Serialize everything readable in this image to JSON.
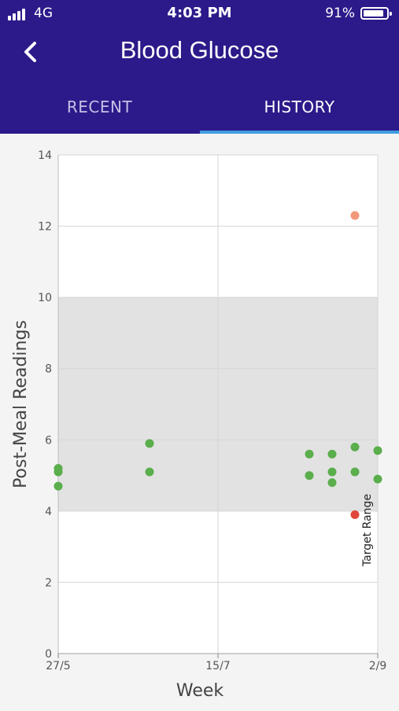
{
  "status": {
    "carrier": "4G",
    "time": "4:03 PM",
    "battery": "91%",
    "battery_level": 0.91,
    "signal_bars": 4
  },
  "header": {
    "title": "Blood Glucose",
    "back_icon": "chevron-left-icon"
  },
  "tabs": [
    {
      "label": "RECENT",
      "active": false
    },
    {
      "label": "HISTORY",
      "active": true
    }
  ],
  "colors": {
    "header_bg": "#2c1a8a",
    "tab_indicator": "#3f9de0",
    "in_range": "#5aae4c",
    "high": "#f2977a",
    "low": "#e0463a",
    "target_band": "#e2e2e2"
  },
  "chart_data": {
    "type": "scatter",
    "xlabel": "Week",
    "ylabel": "Post-Meal Readings",
    "ylim": [
      0,
      14
    ],
    "yticks": [
      0,
      2,
      4,
      6,
      8,
      10,
      12,
      14
    ],
    "xticks": [
      {
        "label": "27/5",
        "value": "2019-05-27"
      },
      {
        "label": "15/7",
        "value": "2019-07-15"
      },
      {
        "label": "2/9",
        "value": "2019-09-02"
      }
    ],
    "xlim": [
      "2019-05-27",
      "2019-09-02"
    ],
    "grid": true,
    "target_range": {
      "label": "Target Range",
      "low": 4,
      "high": 10
    },
    "points": [
      {
        "x": "2019-05-27",
        "y": 5.2,
        "status": "in_range"
      },
      {
        "x": "2019-05-27",
        "y": 5.1,
        "status": "in_range"
      },
      {
        "x": "2019-05-27",
        "y": 4.7,
        "status": "in_range"
      },
      {
        "x": "2019-06-24",
        "y": 5.9,
        "status": "in_range"
      },
      {
        "x": "2019-06-24",
        "y": 5.1,
        "status": "in_range"
      },
      {
        "x": "2019-08-12",
        "y": 5.6,
        "status": "in_range"
      },
      {
        "x": "2019-08-12",
        "y": 5.0,
        "status": "in_range"
      },
      {
        "x": "2019-08-19",
        "y": 5.6,
        "status": "in_range"
      },
      {
        "x": "2019-08-19",
        "y": 5.1,
        "status": "in_range"
      },
      {
        "x": "2019-08-19",
        "y": 4.8,
        "status": "in_range"
      },
      {
        "x": "2019-08-26",
        "y": 12.3,
        "status": "high"
      },
      {
        "x": "2019-08-26",
        "y": 5.8,
        "status": "in_range"
      },
      {
        "x": "2019-08-26",
        "y": 5.1,
        "status": "in_range"
      },
      {
        "x": "2019-08-26",
        "y": 3.9,
        "status": "low"
      },
      {
        "x": "2019-09-02",
        "y": 5.7,
        "status": "in_range"
      },
      {
        "x": "2019-09-02",
        "y": 4.9,
        "status": "in_range"
      }
    ]
  }
}
